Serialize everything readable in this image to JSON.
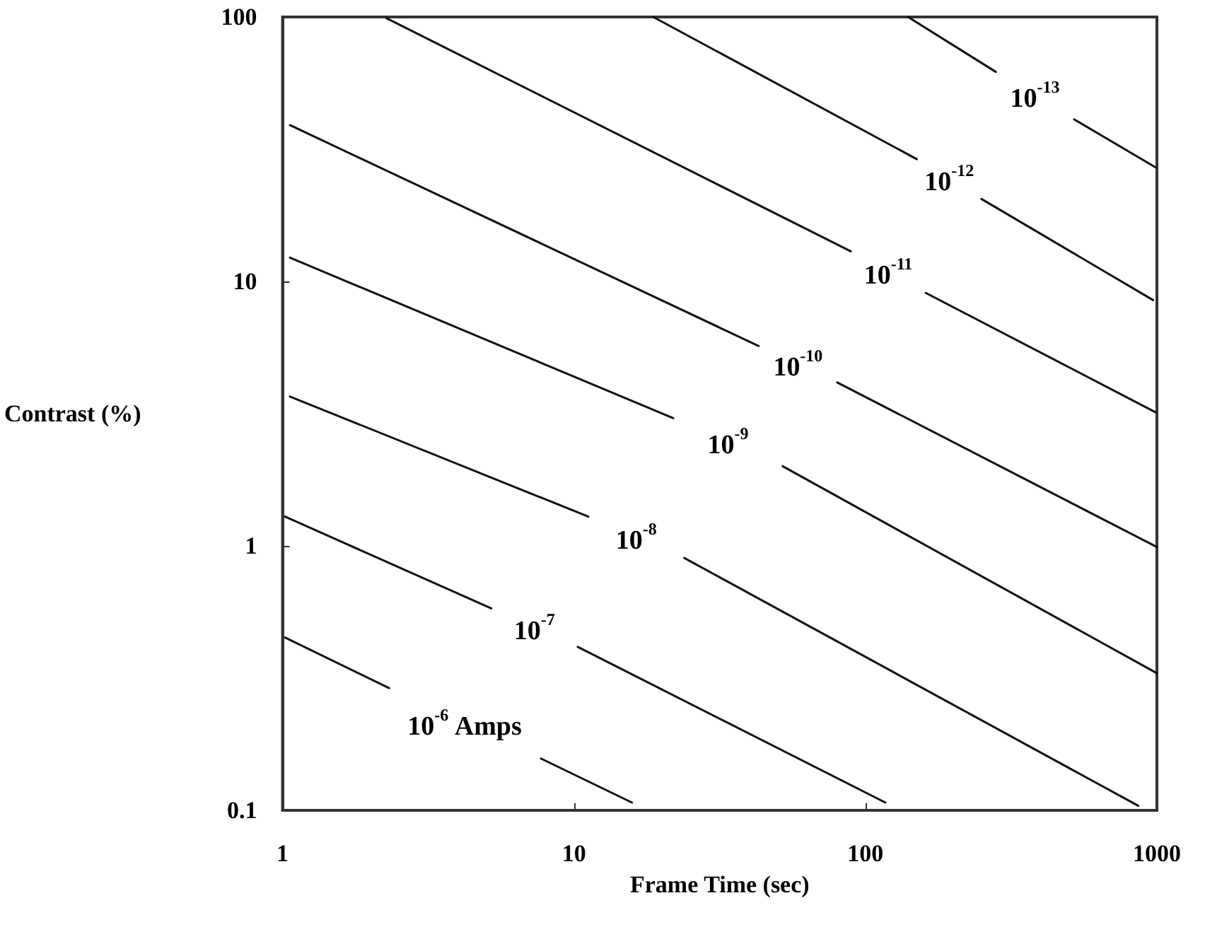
{
  "chart_data": {
    "type": "line",
    "xlabel": "Frame Time (sec)",
    "ylabel": "Contrast (%)",
    "log": "xy",
    "marker": "none",
    "line_style": "solid",
    "legend": false,
    "xlim": [
      1,
      1000
    ],
    "ylim": [
      0.1,
      100
    ],
    "xticks": [
      1,
      10,
      100,
      1000
    ],
    "yticks": [
      0.1,
      1,
      10,
      100
    ],
    "series": [
      {
        "name": "10$^{-13}$",
        "color": "#111111",
        "x": [
          140,
          280,
          380,
          520,
          990
        ],
        "values": [
          100,
          62,
          null,
          41,
          27
        ]
      },
      {
        "name": "10$^{-12}$",
        "color": "#111111",
        "x": [
          18.7,
          150,
          195,
          250,
          970
        ],
        "values": [
          100,
          29,
          null,
          20.5,
          8.5
        ]
      },
      {
        "name": "10$^{-11}$",
        "color": "#111111",
        "x": [
          2.27,
          89,
          120,
          161,
          990
        ],
        "values": [
          99,
          13,
          null,
          9.05,
          3.2
        ]
      },
      {
        "name": "10$^{-10}$",
        "color": "#111111",
        "x": [
          1.06,
          43,
          60,
          80,
          1000
        ],
        "values": [
          39,
          5.7,
          null,
          4.15,
          0.99
        ]
      },
      {
        "name": "10$^{-9}$",
        "color": "#111111",
        "x": [
          1.06,
          21.9,
          34,
          52,
          1000
        ],
        "values": [
          12.3,
          3.04,
          null,
          2.0,
          0.33
        ]
      },
      {
        "name": "10$^{-8}$",
        "color": "#111111",
        "x": [
          1.06,
          11.2,
          16,
          23.9,
          863
        ],
        "values": [
          3.67,
          1.29,
          null,
          0.9,
          0.104
        ]
      },
      {
        "name": "10$^{-7}$",
        "color": "#111111",
        "x": [
          1.02,
          5.2,
          7.3,
          10.3,
          117
        ],
        "values": [
          1.29,
          0.58,
          null,
          0.415,
          0.107
        ]
      },
      {
        "name": "10$^{-6}$ Amps",
        "color": "#111111",
        "x": [
          1.02,
          2.32,
          4.2,
          7.7,
          15.8
        ],
        "values": [
          0.45,
          0.29,
          null,
          0.157,
          0.107
        ]
      }
    ]
  }
}
